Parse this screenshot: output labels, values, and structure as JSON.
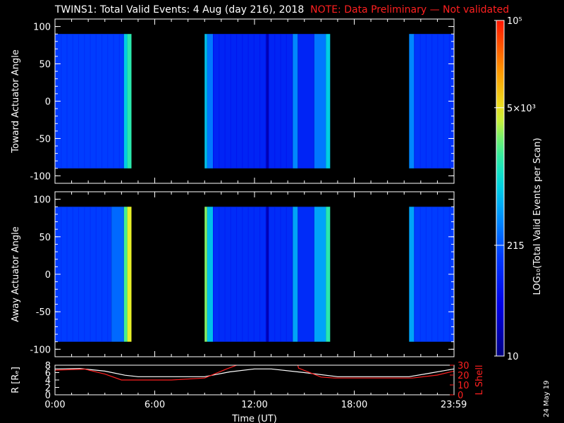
{
  "title": {
    "main": "TWINS1: Total Valid Events:  4 Aug (day 216), 2018",
    "note": "NOTE: Data Preliminary — Not validated"
  },
  "date_stamp": "24 May 19",
  "colors": {
    "background": "#000000",
    "note": "#ff2020",
    "r_line": "#ffffff",
    "l_line": "#ff2020"
  },
  "chart_data": [
    {
      "type": "heatmap",
      "name": "toward-panel",
      "ylabel": "Toward Actuator Angle",
      "yticks": [
        100,
        50,
        0,
        -50,
        -100
      ],
      "ylim": [
        -110,
        110
      ],
      "angle_range": [
        -90,
        90
      ],
      "xlim": [
        0,
        24
      ],
      "segments": [
        {
          "x": [
            0.0,
            4.15
          ],
          "level": 0.3,
          "gradient": "bg"
        },
        {
          "x": [
            4.15,
            4.35
          ],
          "level": 0.5
        },
        {
          "x": [
            4.35,
            4.6
          ],
          "level": 0.58
        },
        {
          "x": [
            9.0,
            9.15
          ],
          "level": 0.48
        },
        {
          "x": [
            9.15,
            9.5
          ],
          "level": 0.38
        },
        {
          "x": [
            9.5,
            12.7
          ],
          "level": 0.24
        },
        {
          "x": [
            12.7,
            12.85
          ],
          "level": 0.08
        },
        {
          "x": [
            12.85,
            14.3
          ],
          "level": 0.24
        },
        {
          "x": [
            14.3,
            14.6
          ],
          "level": 0.4
        },
        {
          "x": [
            14.6,
            15.6
          ],
          "level": 0.24
        },
        {
          "x": [
            15.6,
            16.3
          ],
          "level": 0.38
        },
        {
          "x": [
            16.3,
            16.55
          ],
          "level": 0.5
        },
        {
          "x": [
            21.3,
            21.6
          ],
          "level": 0.4
        },
        {
          "x": [
            21.6,
            24.0
          ],
          "level": 0.28
        }
      ]
    },
    {
      "type": "heatmap",
      "name": "away-panel",
      "ylabel": "Away Actuator Angle",
      "yticks": [
        100,
        50,
        0,
        -50,
        -100
      ],
      "ylim": [
        -110,
        110
      ],
      "angle_range": [
        -90,
        90
      ],
      "xlim": [
        0,
        24
      ],
      "segments": [
        {
          "x": [
            0.0,
            3.4
          ],
          "level": 0.3
        },
        {
          "x": [
            3.4,
            4.15
          ],
          "level": 0.36
        },
        {
          "x": [
            4.15,
            4.35
          ],
          "level": 0.62
        },
        {
          "x": [
            4.35,
            4.6
          ],
          "level": 0.72
        },
        {
          "x": [
            9.0,
            9.15
          ],
          "level": 0.66
        },
        {
          "x": [
            9.15,
            9.5
          ],
          "level": 0.48
        },
        {
          "x": [
            9.5,
            12.7
          ],
          "level": 0.26
        },
        {
          "x": [
            12.7,
            12.85
          ],
          "level": 0.08
        },
        {
          "x": [
            12.85,
            14.3
          ],
          "level": 0.26
        },
        {
          "x": [
            14.3,
            14.6
          ],
          "level": 0.44
        },
        {
          "x": [
            14.6,
            15.6
          ],
          "level": 0.26
        },
        {
          "x": [
            15.6,
            16.3
          ],
          "level": 0.44
        },
        {
          "x": [
            16.3,
            16.55
          ],
          "level": 0.58
        },
        {
          "x": [
            21.3,
            21.6
          ],
          "level": 0.44
        },
        {
          "x": [
            21.6,
            24.0
          ],
          "level": 0.3
        }
      ]
    },
    {
      "type": "line",
      "name": "orbit-panel",
      "xlabel": "Time (UT)",
      "ylabel": "R [Rₑ]",
      "ylabel_right": "L Shell",
      "xlim": [
        0,
        24
      ],
      "ylim": [
        0,
        8
      ],
      "ylim_right": [
        0,
        30
      ],
      "xticks": [
        0,
        6,
        12,
        18,
        23.983
      ],
      "xtick_labels": [
        "0:00",
        "6:00",
        "12:00",
        "18:00",
        "23:59"
      ],
      "yticks": [
        0,
        2,
        4,
        6,
        8
      ],
      "yticks_right": [
        0,
        10,
        20,
        30
      ],
      "series": [
        {
          "axis": "left",
          "color": "#ffffff",
          "x": [
            0,
            1.5,
            3,
            4.2,
            5,
            7,
            9,
            10.5,
            12,
            13,
            15,
            17,
            19,
            21.3,
            22.5,
            24
          ],
          "y": [
            7.0,
            7.1,
            6.4,
            5.3,
            4.9,
            4.9,
            4.9,
            6.2,
            7.0,
            7.0,
            6.0,
            4.9,
            4.9,
            4.9,
            5.8,
            7.0
          ]
        },
        {
          "axis": "right",
          "color": "#ff2020",
          "x": [
            0,
            1.8,
            3.0,
            4.0,
            5.0,
            7.0,
            9.0,
            10.3,
            11.0,
            11.05,
            14.6,
            14.65,
            16.0,
            16.8,
            21.5,
            23.0,
            24.0
          ],
          "y": [
            25,
            26,
            21,
            15,
            15,
            15,
            17,
            26,
            30.5,
            null,
            30.5,
            27,
            18,
            17,
            17,
            20,
            24
          ]
        }
      ]
    },
    {
      "type": "colorbar",
      "name": "colorbar",
      "label": "LOG₁₀(Total Valid Events per Scan)",
      "ticks": [
        {
          "value": 100000,
          "label": "10⁵",
          "pos": 1.0
        },
        {
          "value": 5000,
          "label": "5×10³",
          "pos": 0.74
        },
        {
          "value": 215,
          "label": "215",
          "pos": 0.33
        },
        {
          "value": 10,
          "label": "10",
          "pos": 0.0
        }
      ]
    }
  ]
}
